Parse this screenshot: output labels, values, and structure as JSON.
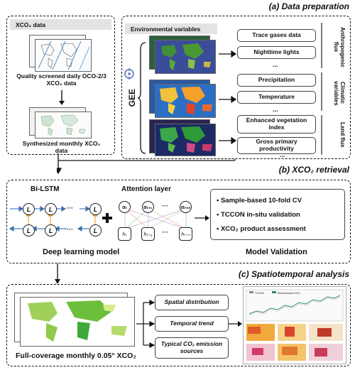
{
  "sections": {
    "a": "(a) Data preparation",
    "b": "(b) XCO₂ retrieval",
    "c": "(c) Spatiotemporal analysis"
  },
  "xco2": {
    "header": "XCO₂ data",
    "daily_caption": "Quality screened daily OCO-2/3 XCO₂ data",
    "monthly_caption": "Synthesized monthly XCO₂ data"
  },
  "env": {
    "header": "Environmental variables",
    "gee": "GEE",
    "groups": [
      {
        "label": "Anthropogenic flux",
        "items": [
          "Trace gases data",
          "Nighttime lights"
        ],
        "more": "..."
      },
      {
        "label": "Climatic variables",
        "items": [
          "Precipitation",
          "Temperature"
        ],
        "more": "..."
      },
      {
        "label": "Land flux",
        "items": [
          "Enhanced vegetation index",
          "Gross primary productivity"
        ],
        "more": "..."
      }
    ]
  },
  "model": {
    "bilstm_label": "Bi-LSTM",
    "attention_label": "Attention layer",
    "lstm_node": "L",
    "dots": "···",
    "alpha_nodes": [
      "αₜ",
      "αₜ₊₁",
      "αₜ₊ₙ"
    ],
    "h_nodes": [
      "hₜ",
      "hₜ₊₁",
      "hₜ₊ₙ"
    ],
    "caption": "Deep learning model"
  },
  "validation": {
    "items": [
      "Sample-based 10-fold CV",
      "TCCON in-situ validation",
      "XCO₂ product assessment"
    ],
    "caption": "Model Validation"
  },
  "analysis": {
    "map_caption": "Full-coverage monthly 0.05° XCO₂",
    "items": [
      "Spatial distribution",
      "Temporal trend",
      "Typical CO₂ emission sources"
    ],
    "chart_legend": [
      "TCCON",
      "Reconstructed XCO₂"
    ]
  },
  "colors": {
    "arrow_blue": "#3a6fb5",
    "arrow_orange": "#f0a030",
    "green": "#5fa02a",
    "ocean": "#1a2d6e"
  }
}
